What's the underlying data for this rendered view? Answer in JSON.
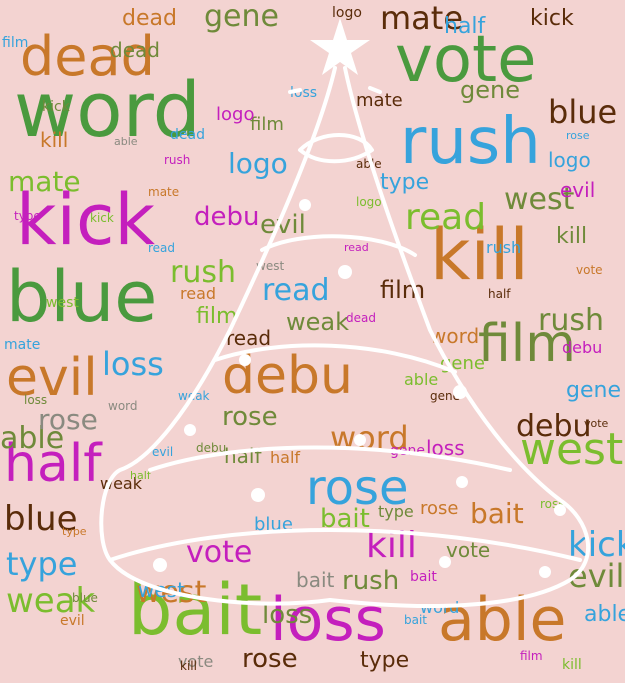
{
  "colors": {
    "background": "#f3d3d1",
    "green": "#4a9a3e",
    "orange": "#c8782a",
    "blue": "#36a3dc",
    "magenta": "#c41fbd",
    "lime": "#7bbd2e",
    "brown": "#5a2c0a",
    "olive": "#6f8a3a",
    "gray": "#8a8a80",
    "tree": "#ffffff"
  },
  "icons": [
    "christmas-tree-icon",
    "star-icon",
    "ornament-dots"
  ],
  "words": [
    {
      "text": "word",
      "size": 76,
      "color": "green"
    },
    {
      "text": "dead",
      "size": 54,
      "color": "orange"
    },
    {
      "text": "vote",
      "size": 64,
      "color": "green"
    },
    {
      "text": "rush",
      "size": 64,
      "color": "blue"
    },
    {
      "text": "kick",
      "size": 70,
      "color": "magenta"
    },
    {
      "text": "blue",
      "size": 70,
      "color": "green"
    },
    {
      "text": "kill",
      "size": 70,
      "color": "orange"
    },
    {
      "text": "evil",
      "size": 52,
      "color": "orange"
    },
    {
      "text": "film",
      "size": 52,
      "color": "olive"
    },
    {
      "text": "debu",
      "size": 52,
      "color": "orange"
    },
    {
      "text": "half",
      "size": 52,
      "color": "magenta"
    },
    {
      "text": "west",
      "size": 44,
      "color": "lime"
    },
    {
      "text": "rose",
      "size": 48,
      "color": "blue"
    },
    {
      "text": "bait",
      "size": 70,
      "color": "lime"
    },
    {
      "text": "loss",
      "size": 60,
      "color": "magenta"
    },
    {
      "text": "able",
      "size": 60,
      "color": "orange"
    },
    {
      "text": "kill",
      "size": 36,
      "color": "magenta"
    },
    {
      "text": "weak",
      "size": 34,
      "color": "lime"
    },
    {
      "text": "type",
      "size": 32,
      "color": "blue"
    },
    {
      "text": "read",
      "size": 36,
      "color": "lime"
    },
    {
      "text": "blue",
      "size": 34,
      "color": "brown"
    },
    {
      "text": "kick",
      "size": 34,
      "color": "blue"
    },
    {
      "text": "evil",
      "size": 32,
      "color": "olive"
    },
    {
      "text": "word",
      "size": 32,
      "color": "orange"
    },
    {
      "text": "able",
      "size": 30,
      "color": "olive"
    },
    {
      "text": "loss",
      "size": 32,
      "color": "blue"
    },
    {
      "text": "rush",
      "size": 30,
      "color": "olive"
    },
    {
      "text": "mate",
      "size": 32,
      "color": "brown"
    },
    {
      "text": "gene",
      "size": 30,
      "color": "olive"
    },
    {
      "text": "blue",
      "size": 32,
      "color": "brown"
    },
    {
      "text": "read",
      "size": 30,
      "color": "blue"
    },
    {
      "text": "logo",
      "size": 28,
      "color": "blue"
    },
    {
      "text": "west",
      "size": 30,
      "color": "olive"
    },
    {
      "text": "mate",
      "size": 28,
      "color": "lime"
    },
    {
      "text": "rush",
      "size": 30,
      "color": "lime"
    },
    {
      "text": "debu",
      "size": 30,
      "color": "brown"
    },
    {
      "text": "rose",
      "size": 28,
      "color": "gray"
    },
    {
      "text": "debu",
      "size": 26,
      "color": "magenta"
    },
    {
      "text": "bait",
      "size": 28,
      "color": "orange"
    },
    {
      "text": "vote",
      "size": 30,
      "color": "magenta"
    },
    {
      "text": "west",
      "size": 30,
      "color": "orange"
    },
    {
      "text": "rush",
      "size": 26,
      "color": "olive"
    },
    {
      "text": "loss",
      "size": 26,
      "color": "olive"
    },
    {
      "text": "film",
      "size": 24,
      "color": "brown"
    },
    {
      "text": "rose",
      "size": 26,
      "color": "brown"
    },
    {
      "text": "evil",
      "size": 26,
      "color": "olive"
    },
    {
      "text": "bait",
      "size": 26,
      "color": "lime"
    },
    {
      "text": "gene",
      "size": 24,
      "color": "olive"
    },
    {
      "text": "type",
      "size": 22,
      "color": "blue"
    },
    {
      "text": "weak",
      "size": 24,
      "color": "olive"
    },
    {
      "text": "rose",
      "size": 26,
      "color": "olive"
    },
    {
      "text": "kick",
      "size": 22,
      "color": "brown"
    },
    {
      "text": "half",
      "size": 22,
      "color": "blue"
    },
    {
      "text": "gene",
      "size": 22,
      "color": "blue"
    },
    {
      "text": "kill",
      "size": 22,
      "color": "olive"
    },
    {
      "text": "film",
      "size": 22,
      "color": "lime"
    },
    {
      "text": "dead",
      "size": 22,
      "color": "orange"
    },
    {
      "text": "logo",
      "size": 20,
      "color": "blue"
    },
    {
      "text": "type",
      "size": 22,
      "color": "brown"
    },
    {
      "text": "half",
      "size": 20,
      "color": "olive"
    },
    {
      "text": "able",
      "size": 22,
      "color": "blue"
    },
    {
      "text": "word",
      "size": 20,
      "color": "orange"
    },
    {
      "text": "vote",
      "size": 20,
      "color": "olive"
    },
    {
      "text": "read",
      "size": 20,
      "color": "brown"
    },
    {
      "text": "bait",
      "size": 20,
      "color": "gray"
    },
    {
      "text": "loss",
      "size": 20,
      "color": "magenta"
    },
    {
      "text": "west",
      "size": 20,
      "color": "blue"
    },
    {
      "text": "mate",
      "size": 18,
      "color": "brown"
    },
    {
      "text": "evil",
      "size": 20,
      "color": "magenta"
    },
    {
      "text": "kill",
      "size": 20,
      "color": "orange"
    },
    {
      "text": "dead",
      "size": 20,
      "color": "olive"
    },
    {
      "text": "gene",
      "size": 18,
      "color": "lime"
    },
    {
      "text": "film",
      "size": 18,
      "color": "olive"
    },
    {
      "text": "rose",
      "size": 18,
      "color": "orange"
    },
    {
      "text": "blue",
      "size": 18,
      "color": "blue"
    },
    {
      "text": "logo",
      "size": 18,
      "color": "magenta"
    },
    {
      "text": "weak",
      "size": 16,
      "color": "brown"
    },
    {
      "text": "type",
      "size": 16,
      "color": "olive"
    },
    {
      "text": "half",
      "size": 16,
      "color": "orange"
    },
    {
      "text": "rush",
      "size": 16,
      "color": "blue"
    },
    {
      "text": "vote",
      "size": 16,
      "color": "gray"
    },
    {
      "text": "debu",
      "size": 16,
      "color": "magenta"
    },
    {
      "text": "able",
      "size": 16,
      "color": "lime"
    },
    {
      "text": "read",
      "size": 16,
      "color": "orange"
    },
    {
      "text": "word",
      "size": 16,
      "color": "blue"
    },
    {
      "text": "kick",
      "size": 14,
      "color": "olive"
    },
    {
      "text": "mate",
      "size": 14,
      "color": "blue"
    },
    {
      "text": "bait",
      "size": 14,
      "color": "magenta"
    },
    {
      "text": "west",
      "size": 14,
      "color": "lime"
    },
    {
      "text": "loss",
      "size": 14,
      "color": "blue"
    },
    {
      "text": "evil",
      "size": 14,
      "color": "orange"
    },
    {
      "text": "gene",
      "size": 14,
      "color": "magenta"
    },
    {
      "text": "film",
      "size": 14,
      "color": "blue"
    },
    {
      "text": "logo",
      "size": 14,
      "color": "brown"
    },
    {
      "text": "dead",
      "size": 14,
      "color": "blue"
    },
    {
      "text": "kill",
      "size": 14,
      "color": "lime"
    },
    {
      "text": "type",
      "size": 12,
      "color": "magenta"
    },
    {
      "text": "half",
      "size": 12,
      "color": "brown"
    },
    {
      "text": "rose",
      "size": 12,
      "color": "lime"
    },
    {
      "text": "blue",
      "size": 12,
      "color": "olive"
    },
    {
      "text": "able",
      "size": 12,
      "color": "brown"
    },
    {
      "text": "read",
      "size": 12,
      "color": "blue"
    },
    {
      "text": "vote",
      "size": 12,
      "color": "orange"
    },
    {
      "text": "weak",
      "size": 12,
      "color": "blue"
    },
    {
      "text": "word",
      "size": 12,
      "color": "gray"
    },
    {
      "text": "debu",
      "size": 12,
      "color": "olive"
    },
    {
      "text": "rush",
      "size": 12,
      "color": "magenta"
    },
    {
      "text": "mate",
      "size": 12,
      "color": "orange"
    },
    {
      "text": "kick",
      "size": 12,
      "color": "lime"
    },
    {
      "text": "gene",
      "size": 12,
      "color": "brown"
    },
    {
      "text": "bait",
      "size": 12,
      "color": "blue"
    },
    {
      "text": "film",
      "size": 12,
      "color": "magenta"
    },
    {
      "text": "west",
      "size": 12,
      "color": "gray"
    },
    {
      "text": "loss",
      "size": 12,
      "color": "olive"
    },
    {
      "text": "logo",
      "size": 12,
      "color": "lime"
    },
    {
      "text": "evil",
      "size": 12,
      "color": "blue"
    },
    {
      "text": "dead",
      "size": 12,
      "color": "magenta"
    },
    {
      "text": "kill",
      "size": 12,
      "color": "brown"
    },
    {
      "text": "type",
      "size": 11,
      "color": "orange"
    },
    {
      "text": "rose",
      "size": 11,
      "color": "blue"
    },
    {
      "text": "half",
      "size": 11,
      "color": "lime"
    },
    {
      "text": "read",
      "size": 11,
      "color": "magenta"
    },
    {
      "text": "able",
      "size": 11,
      "color": "gray"
    },
    {
      "text": "vote",
      "size": 11,
      "color": "brown"
    }
  ]
}
